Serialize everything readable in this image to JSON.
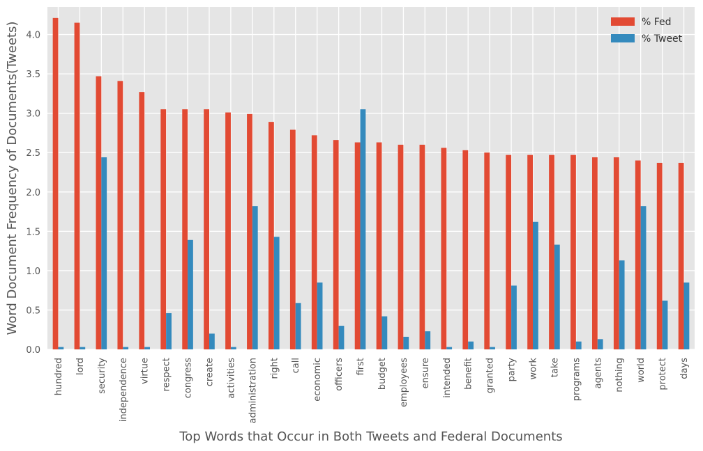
{
  "chart_data": {
    "type": "bar",
    "title": "",
    "xlabel": "Top Words that Occur in Both Tweets and Federal Documents",
    "ylabel": "Word Document Frequency of Documents(Tweets)",
    "ylim": [
      0,
      4.35
    ],
    "yticks": [
      "0.0",
      "0.5",
      "1.0",
      "1.5",
      "2.0",
      "2.5",
      "3.0",
      "3.5",
      "4.0"
    ],
    "grid": true,
    "legend_position": "top-right",
    "categories": [
      "hundred",
      "lord",
      "security",
      "independence",
      "virtue",
      "respect",
      "congress",
      "create",
      "activities",
      "administration",
      "right",
      "call",
      "economic",
      "officers",
      "first",
      "budget",
      "employees",
      "ensure",
      "intended",
      "benefit",
      "granted",
      "party",
      "work",
      "take",
      "programs",
      "agents",
      "nothing",
      "world",
      "protect",
      "days"
    ],
    "series": [
      {
        "name": "% Fed",
        "color": "#e24a33",
        "values": [
          4.21,
          4.15,
          3.47,
          3.41,
          3.27,
          3.05,
          3.05,
          3.05,
          3.01,
          2.99,
          2.89,
          2.79,
          2.72,
          2.66,
          2.63,
          2.63,
          2.6,
          2.6,
          2.56,
          2.53,
          2.5,
          2.47,
          2.47,
          2.47,
          2.47,
          2.44,
          2.44,
          2.4,
          2.37,
          2.37
        ]
      },
      {
        "name": "% Tweet",
        "color": "#348abd",
        "values": [
          0.03,
          0.03,
          2.44,
          0.03,
          0.03,
          0.46,
          1.39,
          0.2,
          0.03,
          1.82,
          1.43,
          0.59,
          0.85,
          0.3,
          3.05,
          0.42,
          0.16,
          0.23,
          0.03,
          0.1,
          0.03,
          0.81,
          1.62,
          1.33,
          0.1,
          0.13,
          1.13,
          1.82,
          0.62,
          0.85
        ]
      }
    ]
  }
}
